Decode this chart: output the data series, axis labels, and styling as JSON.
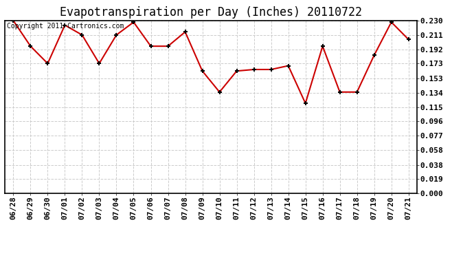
{
  "title": "Evapotranspiration per Day (Inches) 20110722",
  "copyright_text": "Copyright 2011 Cartronics.com",
  "x_labels": [
    "06/28",
    "06/29",
    "06/30",
    "07/01",
    "07/02",
    "07/03",
    "07/04",
    "07/05",
    "07/06",
    "07/07",
    "07/08",
    "07/09",
    "07/10",
    "07/11",
    "07/12",
    "07/13",
    "07/14",
    "07/15",
    "07/16",
    "07/17",
    "07/18",
    "07/19",
    "07/20",
    "07/21"
  ],
  "y_values": [
    0.23,
    0.196,
    0.173,
    0.224,
    0.211,
    0.173,
    0.211,
    0.228,
    0.196,
    0.196,
    0.215,
    0.163,
    0.135,
    0.163,
    0.165,
    0.165,
    0.17,
    0.12,
    0.196,
    0.135,
    0.135,
    0.184,
    0.228,
    0.205
  ],
  "line_color": "#cc0000",
  "marker": "+",
  "marker_size": 5,
  "marker_color": "#000000",
  "background_color": "#ffffff",
  "plot_background_color": "#ffffff",
  "grid_color": "#cccccc",
  "grid_style": "--",
  "ylim_min": 0.0,
  "ylim_max": 0.23,
  "yticks": [
    0.0,
    0.019,
    0.038,
    0.058,
    0.077,
    0.096,
    0.115,
    0.134,
    0.153,
    0.173,
    0.192,
    0.211,
    0.23
  ],
  "title_fontsize": 12,
  "tick_fontsize": 8,
  "copyright_fontsize": 7,
  "line_width": 1.5
}
